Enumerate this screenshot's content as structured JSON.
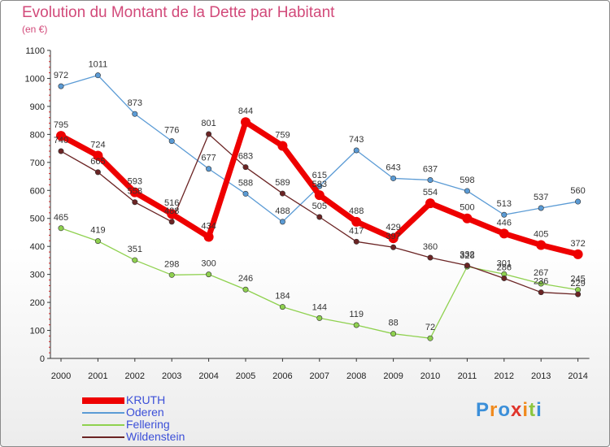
{
  "title": "Evolution du Montant de la Dette par Habitant",
  "unit": "(en €)",
  "logo": "Proxiti",
  "chart_data": {
    "type": "line",
    "title": "Evolution du Montant de la Dette par Habitant",
    "ylabel": "(en €)",
    "xlabel": "",
    "ylim": [
      0,
      1100
    ],
    "yticks": [
      0,
      100,
      200,
      300,
      400,
      500,
      600,
      700,
      800,
      900,
      1000,
      1100
    ],
    "grid": false,
    "legend_position": "bottom-left",
    "x": [
      "2000",
      "2001",
      "2002",
      "2003",
      "2004",
      "2005",
      "2006",
      "2007",
      "2008",
      "2009",
      "2010",
      "2011",
      "2012",
      "2013",
      "2014"
    ],
    "series": [
      {
        "name": "KRUTH",
        "color": "#ee0000",
        "values": [
          795,
          724,
          593,
          516,
          434,
          844,
          759,
          583,
          488,
          429,
          554,
          500,
          446,
          405,
          372
        ]
      },
      {
        "name": "Oderen",
        "color": "#5b9bd5",
        "values": [
          972,
          1011,
          873,
          776,
          677,
          588,
          488,
          615,
          743,
          643,
          637,
          598,
          513,
          537,
          560
        ]
      },
      {
        "name": "Fellering",
        "color": "#8fd14f",
        "values": [
          465,
          419,
          351,
          298,
          300,
          246,
          184,
          144,
          119,
          88,
          72,
          328,
          301,
          267,
          245
        ]
      },
      {
        "name": "Wildenstein",
        "color": "#6b2424",
        "values": [
          740,
          665,
          558,
          488,
          801,
          683,
          589,
          505,
          417,
          397,
          360,
          332,
          286,
          236,
          229
        ]
      }
    ]
  }
}
